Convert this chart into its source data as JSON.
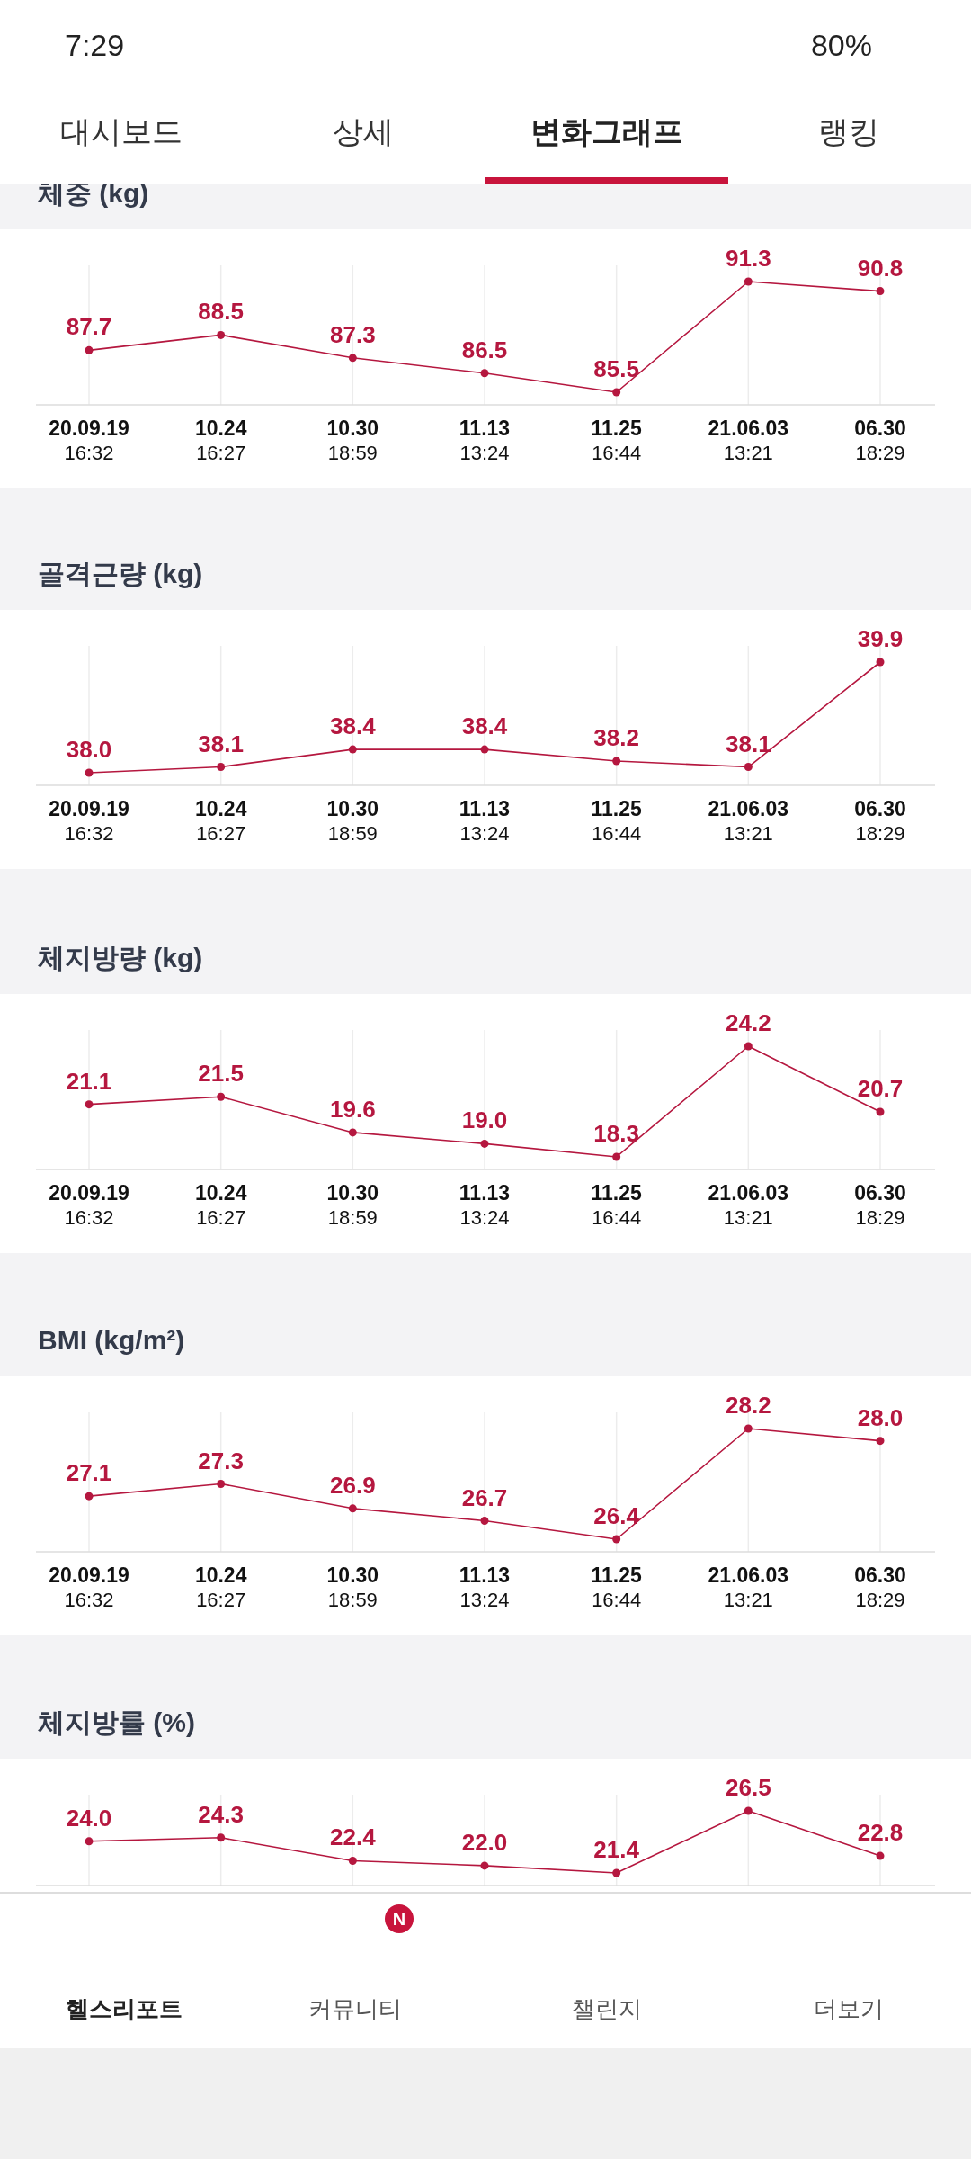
{
  "chart_data": [
    {
      "type": "line",
      "title": "체중 (kg)",
      "color": "#b5173f",
      "marker": "circle",
      "grid": "x",
      "categories": [
        "20.09.19\n16:32",
        "10.24\n16:27",
        "10.30\n18:59",
        "11.13\n13:24",
        "11.25\n16:44",
        "21.06.03\n13:21",
        "06.30\n18:29"
      ],
      "values": [
        87.7,
        88.5,
        87.3,
        86.5,
        85.5,
        91.3,
        90.8
      ],
      "value_labels": [
        "87.7",
        "88.5",
        "87.3",
        "86.5",
        "85.5",
        "91.3",
        "90.8"
      ]
    },
    {
      "type": "line",
      "title": "골격근량 (kg)",
      "color": "#b5173f",
      "marker": "circle",
      "grid": "x",
      "categories": [
        "20.09.19\n16:32",
        "10.24\n16:27",
        "10.30\n18:59",
        "11.13\n13:24",
        "11.25\n16:44",
        "21.06.03\n13:21",
        "06.30\n18:29"
      ],
      "values": [
        38.0,
        38.1,
        38.4,
        38.4,
        38.2,
        38.1,
        39.9
      ],
      "value_labels": [
        "38.0",
        "38.1",
        "38.4",
        "38.4",
        "38.2",
        "38.1",
        "39.9"
      ]
    },
    {
      "type": "line",
      "title": "체지방량 (kg)",
      "color": "#b5173f",
      "marker": "circle",
      "grid": "x",
      "categories": [
        "20.09.19\n16:32",
        "10.24\n16:27",
        "10.30\n18:59",
        "11.13\n13:24",
        "11.25\n16:44",
        "21.06.03\n13:21",
        "06.30\n18:29"
      ],
      "values": [
        21.1,
        21.5,
        19.6,
        19.0,
        18.3,
        24.2,
        20.7
      ],
      "value_labels": [
        "21.1",
        "21.5",
        "19.6",
        "19.0",
        "18.3",
        "24.2",
        "20.7"
      ]
    },
    {
      "type": "line",
      "title": "BMI (kg/m²)",
      "color": "#b5173f",
      "marker": "circle",
      "grid": "x",
      "categories": [
        "20.09.19\n16:32",
        "10.24\n16:27",
        "10.30\n18:59",
        "11.13\n13:24",
        "11.25\n16:44",
        "21.06.03\n13:21",
        "06.30\n18:29"
      ],
      "values": [
        27.1,
        27.3,
        26.9,
        26.7,
        26.4,
        28.2,
        28.0
      ],
      "value_labels": [
        "27.1",
        "27.3",
        "26.9",
        "26.7",
        "26.4",
        "28.2",
        "28.0"
      ]
    },
    {
      "type": "line",
      "title": "체지방률 (%)",
      "color": "#b5173f",
      "marker": "circle",
      "grid": "x",
      "categories": [
        null,
        null,
        null,
        null,
        null,
        null,
        null
      ],
      "values": [
        24.0,
        24.3,
        22.4,
        22.0,
        21.4,
        26.5,
        22.8
      ],
      "value_labels": [
        "24.0",
        "24.3",
        "22.4",
        "22.0",
        "21.4",
        "26.5",
        "22.8"
      ]
    },
    {
      "type": "other",
      "annotations": [
        "7:29",
        "80%",
        "대시보드",
        "상세",
        "변화그래프",
        "랭킹",
        "헬스리포트",
        "커뮤니티",
        "N",
        "챌린지",
        "더보기"
      ]
    }
  ]
}
